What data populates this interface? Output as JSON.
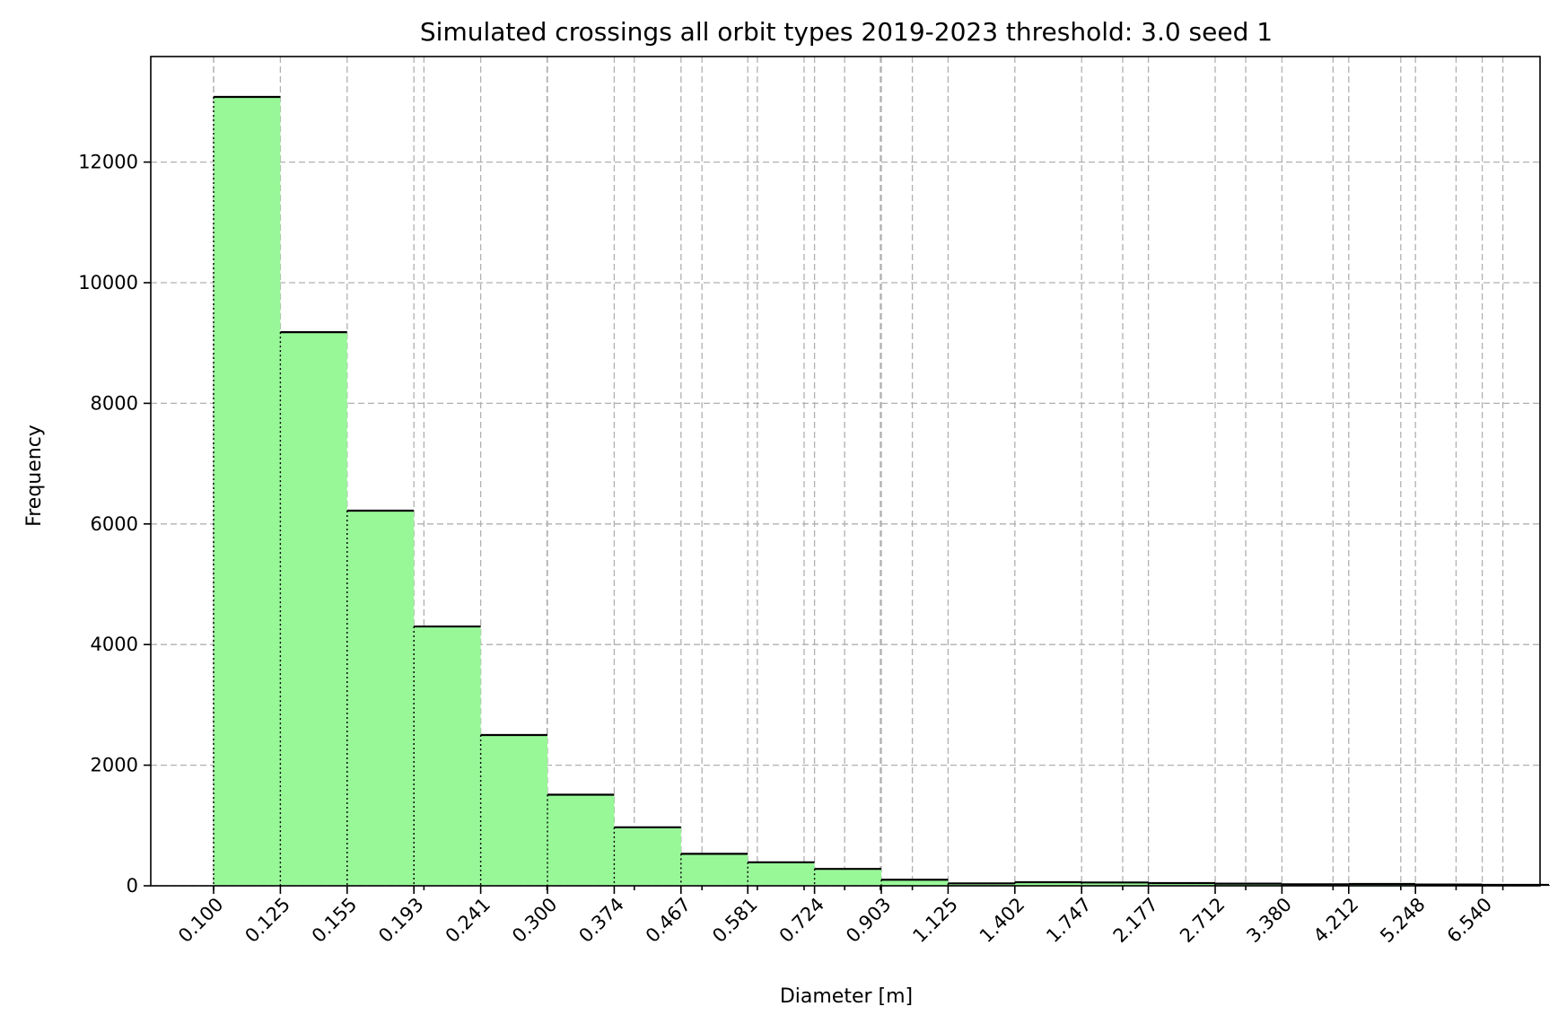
{
  "chart_data": {
    "type": "bar",
    "title": "Simulated crossings all orbit types 2019-2023  threshold: 3.0 seed 1",
    "xlabel": "Diameter [m]",
    "ylabel": "Frequency",
    "bin_edges": [
      0.1,
      0.125,
      0.155,
      0.193,
      0.241,
      0.3,
      0.374,
      0.467,
      0.581,
      0.724,
      0.903,
      1.125,
      1.402,
      1.747,
      2.177,
      2.712,
      3.38,
      4.212,
      5.248,
      6.54
    ],
    "bin_edges_extra": [
      8.15
    ],
    "tick_labels": [
      "0.100",
      "0.125",
      "0.155",
      "0.193",
      "0.241",
      "0.300",
      "0.374",
      "0.467",
      "0.581",
      "0.724",
      "0.903",
      "1.125",
      "1.402",
      "1.747",
      "2.177",
      "2.712",
      "3.380",
      "4.212",
      "5.248",
      "6.540"
    ],
    "values": [
      13080,
      9180,
      6220,
      4300,
      2500,
      1510,
      970,
      530,
      390,
      280,
      100,
      40,
      60,
      55,
      45,
      35,
      25,
      30,
      20,
      15
    ],
    "y_ticks": [
      "0",
      "2000",
      "4000",
      "6000",
      "8000",
      "10000",
      "12000"
    ],
    "ylim": [
      0,
      13750
    ],
    "xscale": "log",
    "grid": true,
    "bar_color": "#98f898",
    "edge_color": "#000000"
  }
}
